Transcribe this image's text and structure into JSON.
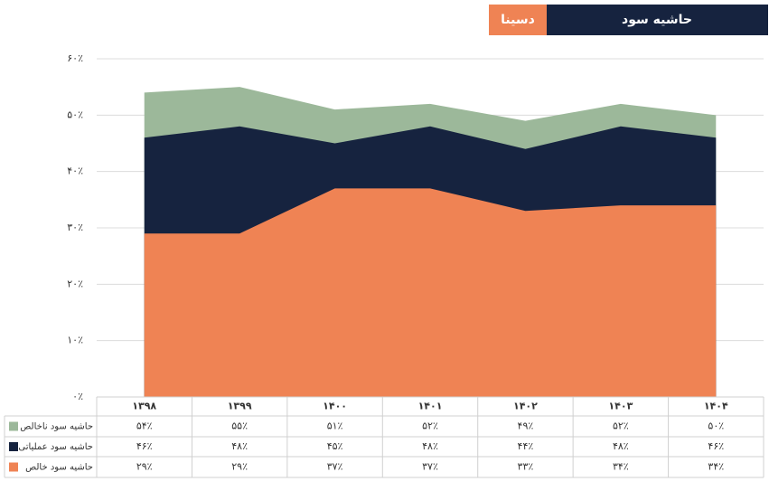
{
  "chart_data": {
    "type": "area",
    "title": "حاشیه سود",
    "subtitle": "دسینا",
    "categories": [
      "۱۳۹۸",
      "۱۳۹۹",
      "۱۴۰۰",
      "۱۴۰۱",
      "۱۴۰۲",
      "۱۴۰۳",
      "۱۴۰۴"
    ],
    "series": [
      {
        "name": "حاشیه سود ناخالص",
        "color": "#9cb89a",
        "values": [
          54,
          55,
          51,
          52,
          49,
          52,
          50
        ],
        "value_labels": [
          "۵۴٪",
          "۵۵٪",
          "۵۱٪",
          "۵۲٪",
          "۴۹٪",
          "۵۲٪",
          "۵۰٪"
        ]
      },
      {
        "name": "حاشیه سود عملیاتی",
        "color": "#16233f",
        "values": [
          46,
          48,
          45,
          48,
          44,
          48,
          46
        ],
        "value_labels": [
          "۴۶٪",
          "۴۸٪",
          "۴۵٪",
          "۴۸٪",
          "۴۴٪",
          "۴۸٪",
          "۴۶٪"
        ]
      },
      {
        "name": "حاشیه سود خالص",
        "color": "#ef8354",
        "values": [
          29,
          29,
          37,
          37,
          33,
          34,
          34
        ],
        "value_labels": [
          "۲۹٪",
          "۲۹٪",
          "۳۷٪",
          "۳۷٪",
          "۳۳٪",
          "۳۴٪",
          "۳۴٪"
        ]
      }
    ],
    "ylim": [
      0,
      60
    ],
    "yticks": [
      {
        "value": 0,
        "label": "۰٪"
      },
      {
        "value": 10,
        "label": "۱۰٪"
      },
      {
        "value": 20,
        "label": "۲۰٪"
      },
      {
        "value": 30,
        "label": "۳۰٪"
      },
      {
        "value": 40,
        "label": "۴۰٪"
      },
      {
        "value": 50,
        "label": "۵۰٪"
      },
      {
        "value": 60,
        "label": "۶۰٪"
      }
    ],
    "grid": true
  }
}
